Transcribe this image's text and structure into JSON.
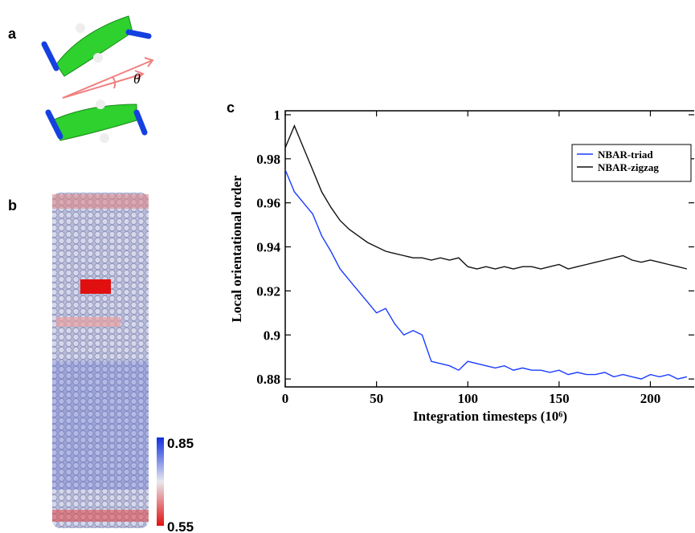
{
  "panel_labels": [
    "a",
    "b",
    "c"
  ],
  "angle_label": "θ",
  "colorbar": {
    "max_label": "0.85",
    "min_label": "0.55"
  },
  "chart_data": {
    "type": "line",
    "xlabel": "Integration timesteps (10⁶)",
    "ylabel": "Local orientational order",
    "x": [
      0,
      5,
      10,
      15,
      20,
      25,
      30,
      35,
      40,
      45,
      50,
      55,
      60,
      65,
      70,
      75,
      80,
      85,
      90,
      95,
      100,
      105,
      110,
      115,
      120,
      125,
      130,
      135,
      140,
      145,
      150,
      155,
      160,
      165,
      170,
      175,
      180,
      185,
      190,
      195,
      200,
      205,
      210,
      215,
      220
    ],
    "series": [
      {
        "name": "NBAR-triad",
        "color": "#1a3cff",
        "values": [
          0.975,
          0.965,
          0.96,
          0.955,
          0.945,
          0.938,
          0.93,
          0.925,
          0.92,
          0.915,
          0.91,
          0.912,
          0.905,
          0.9,
          0.902,
          0.9,
          0.888,
          0.887,
          0.886,
          0.884,
          0.888,
          0.887,
          0.886,
          0.885,
          0.886,
          0.884,
          0.885,
          0.884,
          0.884,
          0.883,
          0.884,
          0.882,
          0.883,
          0.882,
          0.882,
          0.883,
          0.881,
          0.882,
          0.881,
          0.88,
          0.882,
          0.881,
          0.882,
          0.88,
          0.881
        ]
      },
      {
        "name": "NBAR-zigzag",
        "color": "#111111",
        "values": [
          0.985,
          0.995,
          0.985,
          0.975,
          0.965,
          0.958,
          0.952,
          0.948,
          0.945,
          0.942,
          0.94,
          0.938,
          0.937,
          0.936,
          0.935,
          0.935,
          0.934,
          0.935,
          0.934,
          0.935,
          0.931,
          0.93,
          0.931,
          0.93,
          0.931,
          0.93,
          0.931,
          0.931,
          0.93,
          0.931,
          0.932,
          0.93,
          0.931,
          0.932,
          0.933,
          0.934,
          0.935,
          0.936,
          0.934,
          0.933,
          0.934,
          0.933,
          0.932,
          0.931,
          0.93
        ]
      }
    ],
    "xlim": [
      0,
      224
    ],
    "xticks": [
      0,
      50,
      100,
      150,
      200
    ],
    "ylim": [
      0.8764,
      1.0018
    ],
    "yticks": [
      0.88,
      0.9,
      0.92,
      0.94,
      0.96,
      0.98,
      1
    ],
    "legend": "upper right"
  }
}
